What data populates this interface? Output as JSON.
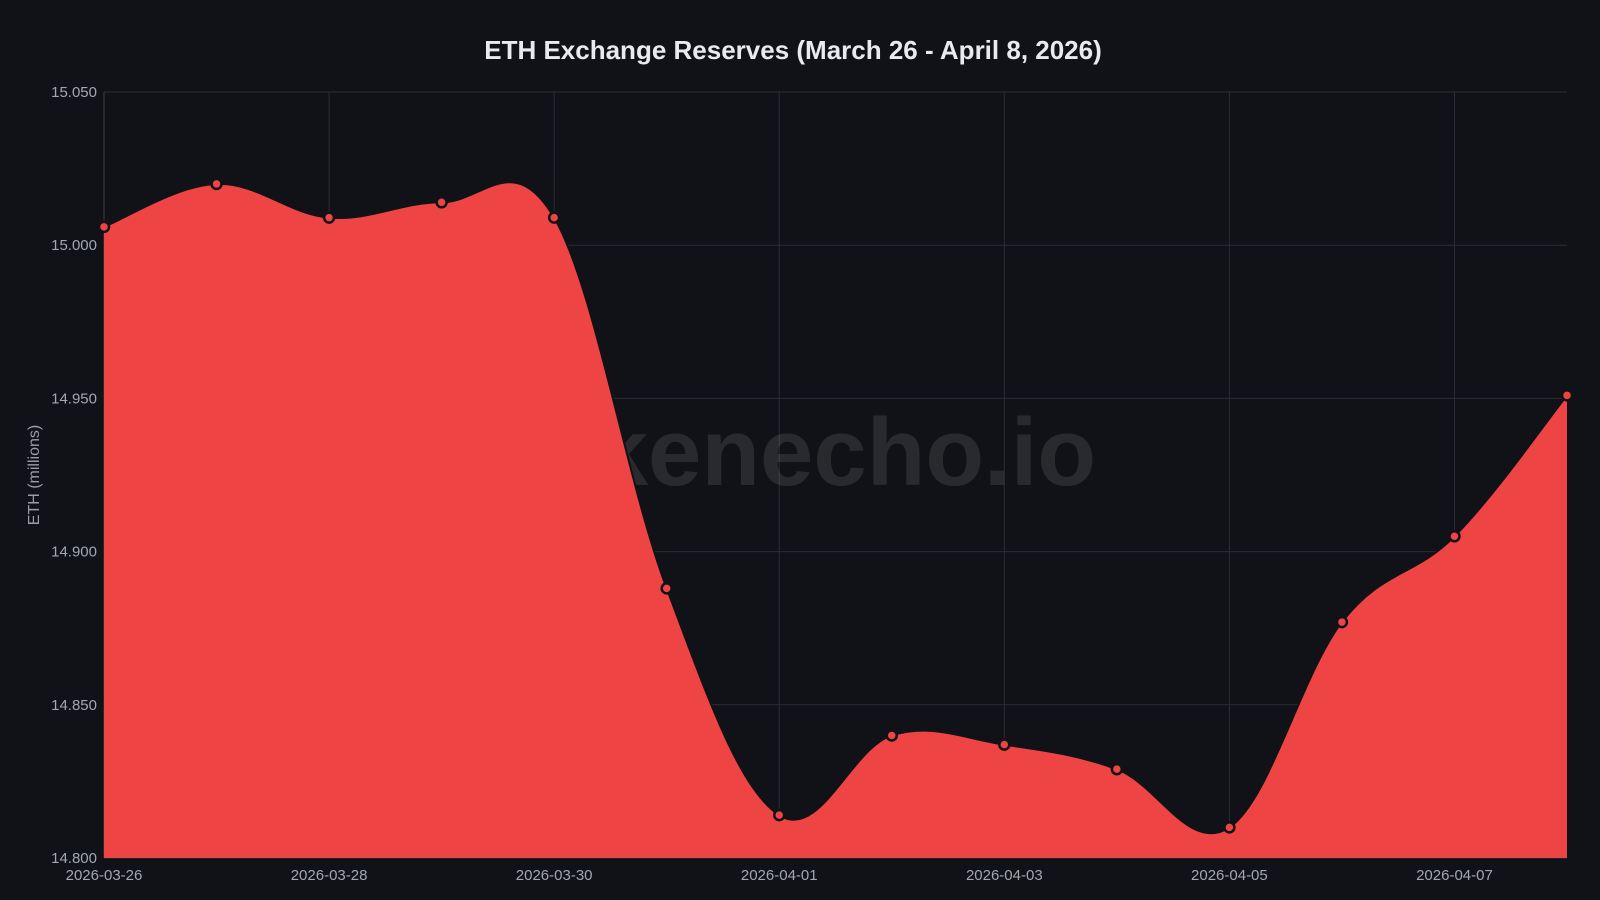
{
  "colors": {
    "background": "#111217",
    "area_fill": "#ef4444",
    "line": "#111217",
    "marker_fill": "#ef4444",
    "marker_stroke": "#111217",
    "grid": "#2a2d35",
    "text": "#a3a7b0",
    "title": "#e8eaee"
  },
  "watermark": "tokenecho.io",
  "chart_data": {
    "type": "area",
    "title": "ETH Exchange Reserves (March 26 - April 8, 2026)",
    "xlabel": "",
    "ylabel": "ETH (millions)",
    "ylim": [
      14.8,
      15.05
    ],
    "yticks": [
      "15.050",
      "15.000",
      "14.950",
      "14.900",
      "14.850",
      "14.800"
    ],
    "xtick_labels": [
      "2026-03-26",
      "2026-03-28",
      "2026-03-30",
      "2026-04-01",
      "2026-04-03",
      "2026-04-05",
      "2026-04-07"
    ],
    "grid": true,
    "legend": "none",
    "x": [
      "2026-03-26",
      "2026-03-27",
      "2026-03-28",
      "2026-03-29",
      "2026-03-30",
      "2026-03-31",
      "2026-04-01",
      "2026-04-02",
      "2026-04-03",
      "2026-04-04",
      "2026-04-05",
      "2026-04-06",
      "2026-04-07",
      "2026-04-08"
    ],
    "series": [
      {
        "values": [
          15.006,
          15.02,
          15.009,
          15.014,
          15.009,
          14.888,
          14.814,
          14.84,
          14.837,
          14.829,
          14.81,
          14.877,
          14.905,
          14.951
        ]
      }
    ]
  }
}
